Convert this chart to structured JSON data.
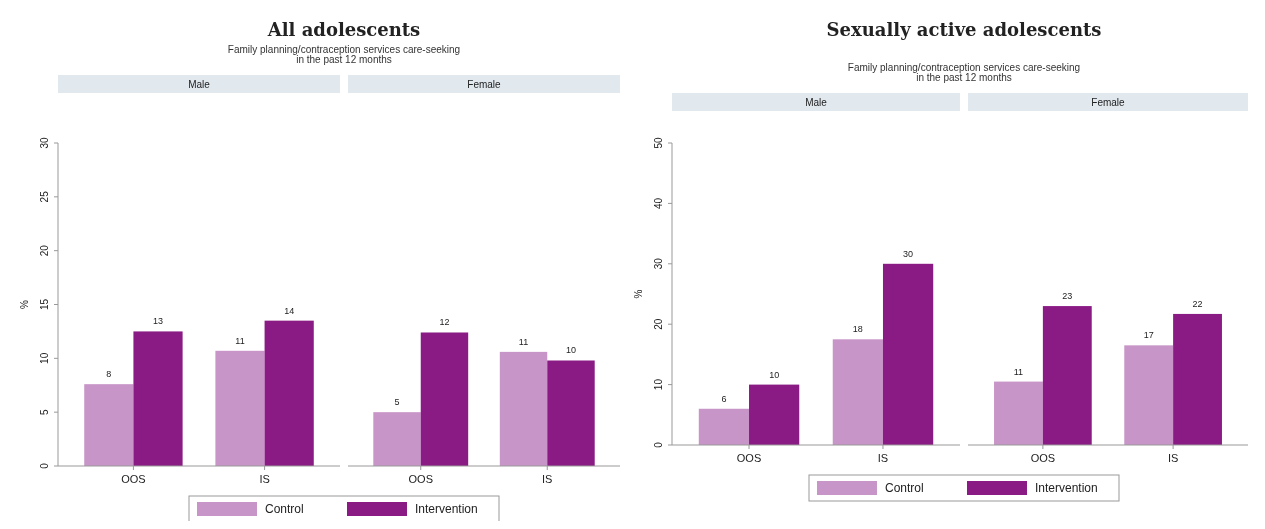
{
  "chart_data": [
    {
      "type": "bar",
      "title": "Male",
      "annotations": [
        "All adolescents",
        "Family planning/contraception services care-seeking in the past 12 months"
      ],
      "ylabel": "%",
      "categories": [
        "OOS",
        "IS"
      ],
      "ylim": [
        0,
        30
      ],
      "yticks": [
        0,
        5,
        10,
        15,
        20,
        25,
        30
      ],
      "legend": "bottom",
      "series": [
        {
          "name": "Control",
          "color": "#c895c8",
          "values": [
            7.6,
            10.7
          ],
          "value_labels": [
            "8",
            "11"
          ]
        },
        {
          "name": "Intervention",
          "color": "#8a1a84",
          "values": [
            12.5,
            13.5
          ],
          "value_labels": [
            "13",
            "14"
          ]
        }
      ]
    },
    {
      "type": "bar",
      "title": "Female",
      "categories": [
        "OOS",
        "IS"
      ],
      "ylim": [
        0,
        30
      ],
      "tick_labels": "x",
      "series": [
        {
          "color": "#c895c8",
          "values": [
            5,
            10.6
          ],
          "value_labels": [
            "5",
            "11"
          ]
        },
        {
          "color": "#8a1a84",
          "values": [
            12.4,
            9.8
          ],
          "value_labels": [
            "12",
            "10"
          ]
        }
      ]
    },
    {
      "type": "bar",
      "title": "Male",
      "annotations": [
        "Sexually active adolescents",
        "Family planning/contraception services care-seeking in the past 12 months"
      ],
      "ylabel": "%",
      "categories": [
        "OOS",
        "IS"
      ],
      "ylim": [
        0,
        50
      ],
      "yticks": [
        0,
        10,
        20,
        30,
        40,
        50
      ],
      "legend": "bottom",
      "series": [
        {
          "name": "Control",
          "color": "#c895c8",
          "values": [
            6,
            17.5
          ],
          "value_labels": [
            "6",
            "18"
          ]
        },
        {
          "name": "Intervention",
          "color": "#8a1a84",
          "values": [
            10,
            30
          ],
          "value_labels": [
            "10",
            "30"
          ]
        }
      ]
    },
    {
      "type": "bar",
      "title": "Female",
      "categories": [
        "OOS",
        "IS"
      ],
      "ylim": [
        0,
        50
      ],
      "tick_labels": "x",
      "series": [
        {
          "color": "#c895c8",
          "values": [
            10.5,
            16.5
          ],
          "value_labels": [
            "11",
            "17"
          ]
        },
        {
          "color": "#8a1a84",
          "values": [
            23,
            21.7
          ],
          "value_labels": [
            "23",
            "22"
          ]
        }
      ]
    }
  ]
}
